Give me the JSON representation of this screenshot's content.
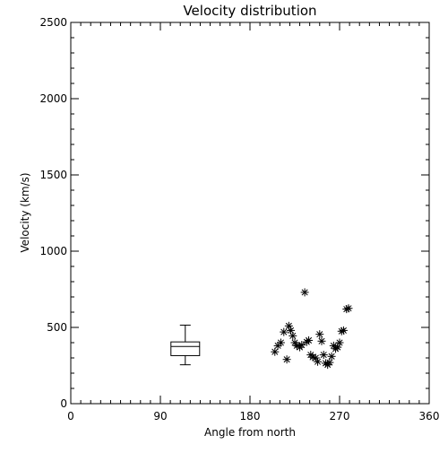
{
  "chart_data": {
    "type": "scatter",
    "title": "Velocity distribution",
    "xlabel": "Angle from north",
    "ylabel": "Velocity (km/s)",
    "xlim": [
      0,
      360
    ],
    "ylim": [
      0,
      2500
    ],
    "x_ticks": [
      0,
      90,
      180,
      270,
      360
    ],
    "y_ticks": [
      0,
      500,
      1000,
      1500,
      2000,
      2500
    ],
    "x_minor_step": 10,
    "y_minor_step": 100,
    "grid": false,
    "legend": "none",
    "marker": "asterisk",
    "box_plot": {
      "x": 115,
      "min": 255,
      "q1": 315,
      "median": 375,
      "q3": 405,
      "max": 515
    },
    "points": [
      {
        "x": 205,
        "y": 340
      },
      {
        "x": 208,
        "y": 380
      },
      {
        "x": 211,
        "y": 400
      },
      {
        "x": 214,
        "y": 470
      },
      {
        "x": 217,
        "y": 290
      },
      {
        "x": 219,
        "y": 510
      },
      {
        "x": 221,
        "y": 480
      },
      {
        "x": 223,
        "y": 445
      },
      {
        "x": 225,
        "y": 400
      },
      {
        "x": 227,
        "y": 380
      },
      {
        "x": 230,
        "y": 370
      },
      {
        "x": 232,
        "y": 385
      },
      {
        "x": 235,
        "y": 730
      },
      {
        "x": 237,
        "y": 405
      },
      {
        "x": 239,
        "y": 415
      },
      {
        "x": 241,
        "y": 320
      },
      {
        "x": 243,
        "y": 305
      },
      {
        "x": 246,
        "y": 300
      },
      {
        "x": 248,
        "y": 275
      },
      {
        "x": 250,
        "y": 455
      },
      {
        "x": 252,
        "y": 410
      },
      {
        "x": 254,
        "y": 320
      },
      {
        "x": 256,
        "y": 265
      },
      {
        "x": 258,
        "y": 255
      },
      {
        "x": 260,
        "y": 270
      },
      {
        "x": 262,
        "y": 310
      },
      {
        "x": 264,
        "y": 380
      },
      {
        "x": 266,
        "y": 360
      },
      {
        "x": 268,
        "y": 370
      },
      {
        "x": 270,
        "y": 400
      },
      {
        "x": 272,
        "y": 475
      },
      {
        "x": 274,
        "y": 480
      },
      {
        "x": 277,
        "y": 620
      },
      {
        "x": 279,
        "y": 625
      }
    ]
  }
}
